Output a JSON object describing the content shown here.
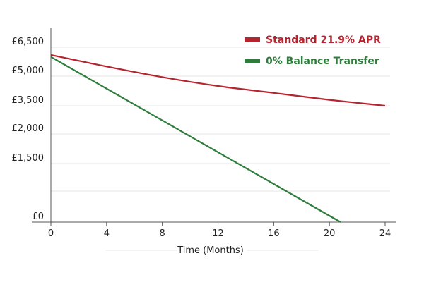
{
  "chart_data": {
    "type": "line",
    "xlabel": "Time (Months)",
    "ylabel": "",
    "xlim": [
      0,
      24
    ],
    "x_ticks": [
      "0",
      "4",
      "8",
      "12",
      "16",
      "20",
      "24"
    ],
    "y_ticks": [
      {
        "label": "£6,500",
        "value": 6500
      },
      {
        "label": "£5,000",
        "value": 5000
      },
      {
        "label": "£3,500",
        "value": 3500
      },
      {
        "label": "£2,000",
        "value": 2000
      },
      {
        "label": "£1,500",
        "value": 1500
      },
      {
        "label": "£0",
        "value": 0
      }
    ],
    "grid": true,
    "legend_position": "top-right",
    "series": [
      {
        "name": "Standard 21.9% APR",
        "color": "#b5242f",
        "x": [
          0,
          4,
          8,
          12,
          16,
          20,
          24
        ],
        "y": [
          6100,
          5500,
          4950,
          4500,
          4150,
          3800,
          3500
        ]
      },
      {
        "name": "0% Balance Transfer",
        "color": "#2f7d3c",
        "x": [
          0,
          20.8
        ],
        "y": [
          6000,
          0
        ]
      }
    ]
  }
}
